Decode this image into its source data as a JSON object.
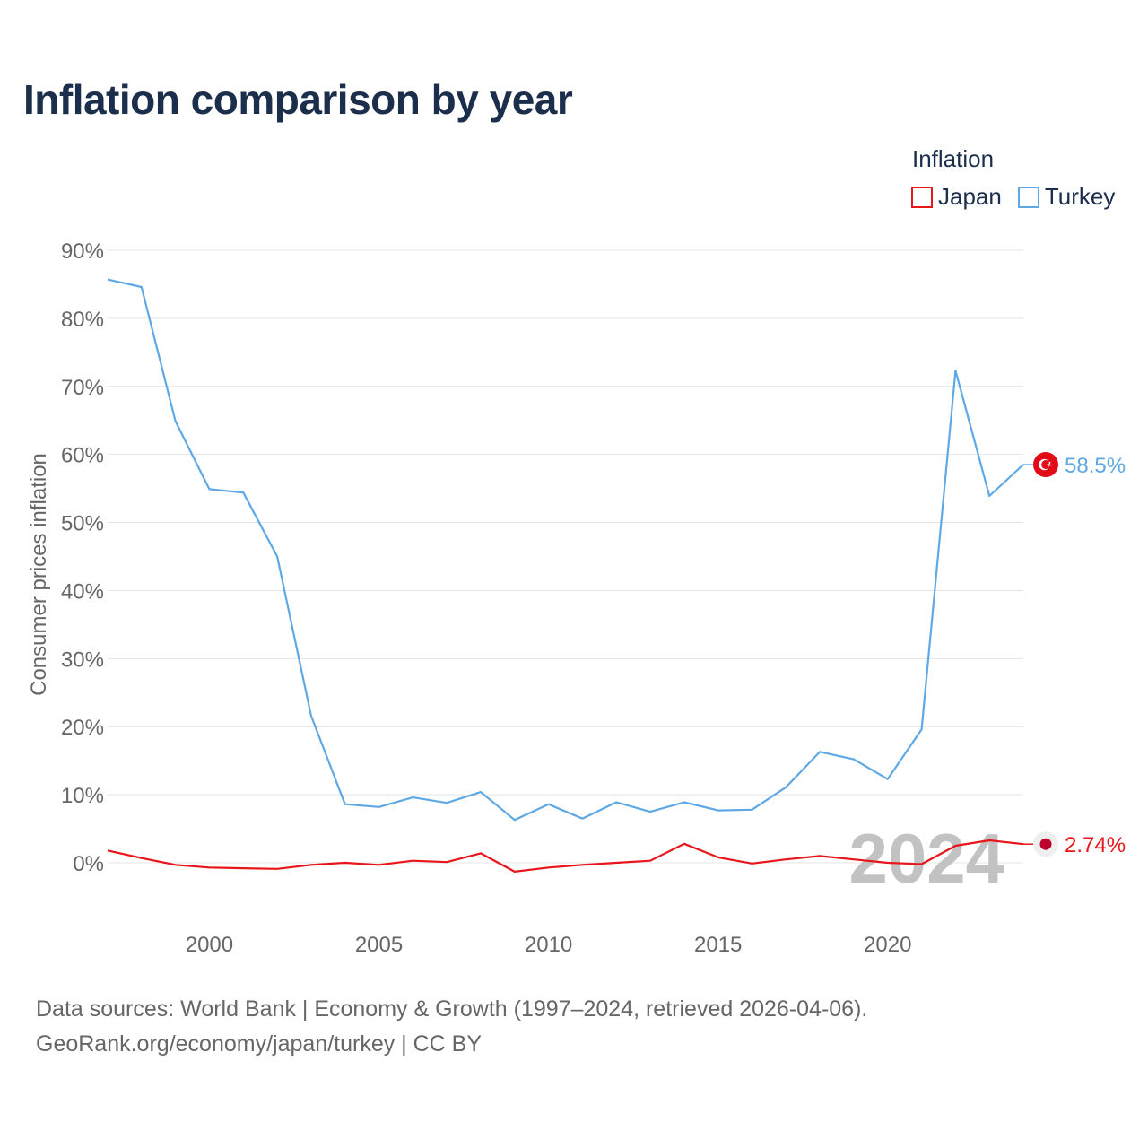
{
  "title": "Inflation comparison by year",
  "legend": {
    "title": "Inflation",
    "items": [
      {
        "label": "Japan",
        "color": "#e8151b"
      },
      {
        "label": "Turkey",
        "color": "#5ea8e6"
      }
    ]
  },
  "chart_data": {
    "type": "line",
    "title": "Inflation comparison by year",
    "xlabel": "",
    "ylabel": "Consumer prices inflation",
    "x": [
      1997,
      1998,
      1999,
      2000,
      2001,
      2002,
      2003,
      2004,
      2005,
      2006,
      2007,
      2008,
      2009,
      2010,
      2011,
      2012,
      2013,
      2014,
      2015,
      2016,
      2017,
      2018,
      2019,
      2020,
      2021,
      2022,
      2023,
      2024
    ],
    "series": [
      {
        "name": "Japan",
        "color": "#e8151b",
        "values": [
          1.8,
          0.7,
          -0.3,
          -0.7,
          -0.8,
          -0.9,
          -0.3,
          0.0,
          -0.3,
          0.3,
          0.1,
          1.4,
          -1.3,
          -0.7,
          -0.3,
          0.0,
          0.3,
          2.8,
          0.8,
          -0.1,
          0.5,
          1.0,
          0.5,
          0.0,
          -0.2,
          2.5,
          3.3,
          2.74
        ]
      },
      {
        "name": "Turkey",
        "color": "#5ea8e6",
        "values": [
          85.7,
          84.6,
          64.9,
          54.9,
          54.4,
          45.0,
          21.6,
          8.6,
          8.2,
          9.6,
          8.8,
          10.4,
          6.3,
          8.6,
          6.5,
          8.9,
          7.5,
          8.9,
          7.7,
          7.8,
          11.1,
          16.3,
          15.2,
          12.3,
          19.6,
          72.3,
          53.9,
          58.5
        ]
      }
    ],
    "xlim": [
      1997,
      2024
    ],
    "xticks": [
      2000,
      2005,
      2010,
      2015,
      2020
    ],
    "xtick_labels": [
      "2000",
      "2005",
      "2010",
      "2015",
      "2020"
    ],
    "ylim": [
      0,
      90
    ],
    "yticks": [
      0,
      10,
      20,
      30,
      40,
      50,
      60,
      70,
      80,
      90
    ],
    "ytick_labels": [
      "0%",
      "10%",
      "20%",
      "30%",
      "40%",
      "50%",
      "60%",
      "70%",
      "80%",
      "90%"
    ],
    "grid": true,
    "end_labels": [
      {
        "series": "Turkey",
        "text": "58.5%",
        "flag": "turkey-flag-icon"
      },
      {
        "series": "Japan",
        "text": "2.74%",
        "flag": "japan-flag-icon"
      }
    ],
    "watermark_year": "2024"
  },
  "footer": {
    "line1": "Data sources: World Bank | Economy & Growth (1997–2024, retrieved 2026-04-06).",
    "line2": "GeoRank.org/economy/japan/turkey | CC BY"
  }
}
